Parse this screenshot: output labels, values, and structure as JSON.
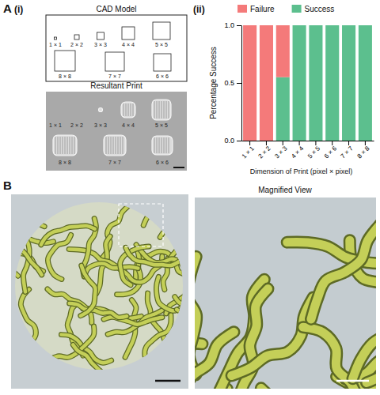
{
  "chart_data": {
    "type": "bar",
    "stacked": true,
    "legend": "top",
    "categories": [
      "1 × 1",
      "2 × 2",
      "3 × 3",
      "4 × 4",
      "5 × 5",
      "6 × 6",
      "7 × 7",
      "8 × 8"
    ],
    "series": [
      {
        "name": "Success",
        "color": "#5cbf8e",
        "values": [
          0,
          0,
          0.55,
          1,
          1,
          1,
          1,
          1
        ]
      },
      {
        "name": "Failure",
        "color": "#f47a7a",
        "values": [
          1,
          1,
          0.45,
          0,
          0,
          0,
          0,
          0
        ]
      }
    ],
    "ylim": [
      0,
      1
    ],
    "yticks": [
      {
        "value": 0,
        "label": "0.0"
      },
      {
        "value": 0.5,
        "label": "0.5"
      },
      {
        "value": 1,
        "label": "1.0"
      }
    ],
    "x_label": "Dimension of Print (pixel × pixel)",
    "y_label": "Percentage Success"
  },
  "figure": {
    "panel_a": "A",
    "panel_a_i": "(i)",
    "panel_a_ii": "(ii)",
    "cad_title": "CAD Model",
    "print_title": "Resultant Print",
    "cad_labels": [
      "1 × 1",
      "2 × 2",
      "3 × 3",
      "4 × 4",
      "5 × 5",
      "8 × 8",
      "7 × 7",
      "6 × 6"
    ],
    "print_labels": [
      "1 × 1",
      "2 × 2",
      "3 × 3",
      "4 × 4",
      "5 × 5",
      "8 × 8",
      "7 × 7",
      "6 × 6"
    ],
    "panel_b": "B",
    "magnified_title": "Magnified View"
  }
}
